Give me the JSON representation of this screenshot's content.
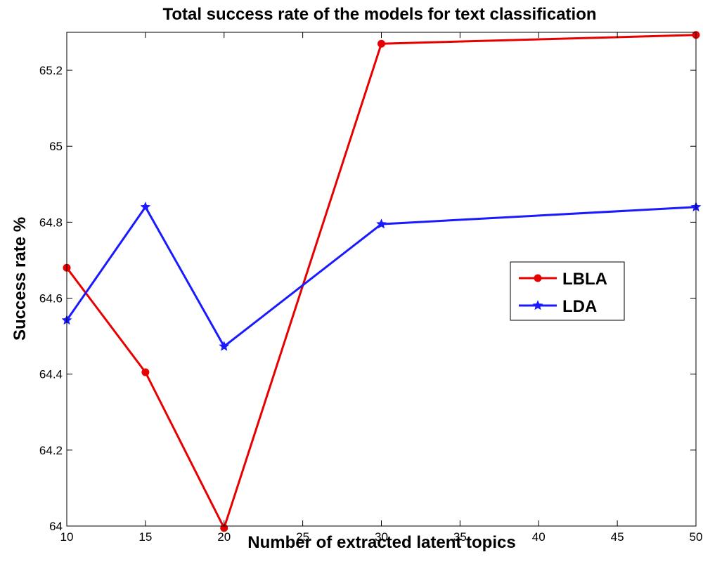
{
  "chart_data": {
    "type": "line",
    "title": "Total success rate of the models for text classification",
    "xlabel": "Number of extracted latent topics",
    "ylabel": "Success rate %",
    "x": [
      10,
      15,
      20,
      30,
      50
    ],
    "xlim": [
      10,
      50
    ],
    "ylim": [
      64,
      65.3
    ],
    "x_ticks": [
      10,
      15,
      20,
      25,
      30,
      35,
      40,
      45,
      50
    ],
    "y_ticks": [
      64,
      64.2,
      64.4,
      64.6,
      64.8,
      65,
      65.2
    ],
    "x_tick_labels": [
      "10",
      "15",
      "20",
      "25",
      "30",
      "35",
      "40",
      "45",
      "50"
    ],
    "y_tick_labels": [
      "64",
      "64.2",
      "64.4",
      "64.6",
      "64.8",
      "65",
      "65.2"
    ],
    "grid": false,
    "legend_position": "right",
    "series": [
      {
        "name": "LBLA",
        "color": "#e80000",
        "marker": "circle",
        "values": [
          64.68,
          64.405,
          63.995,
          65.27,
          65.293
        ]
      },
      {
        "name": "LDA",
        "color": "#1a1aff",
        "marker": "star",
        "values": [
          64.542,
          64.84,
          64.473,
          64.795,
          64.84
        ]
      }
    ]
  }
}
